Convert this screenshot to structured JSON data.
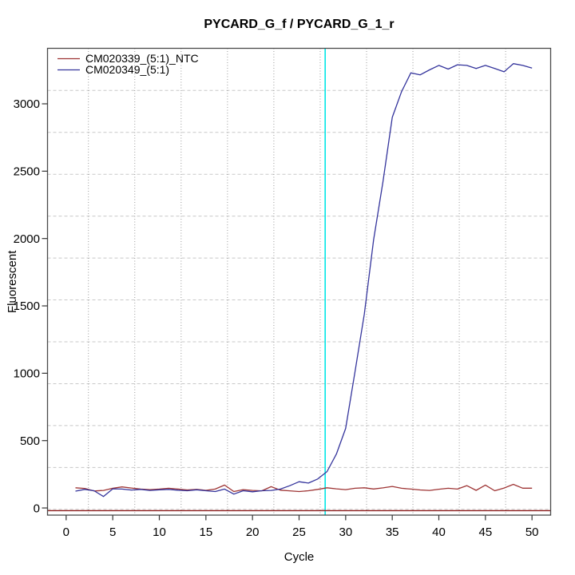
{
  "chart_data": {
    "type": "line",
    "title": "PYCARD_G_f / PYCARD_G_1_r",
    "xlabel": "Cycle",
    "ylabel": "Fluorescent",
    "x_ticks": [
      0,
      5,
      10,
      15,
      20,
      25,
      30,
      35,
      40,
      45,
      50
    ],
    "y_ticks": [
      0,
      500,
      1000,
      1500,
      2000,
      2500,
      3000
    ],
    "xlim": [
      -2,
      52
    ],
    "ylim": [
      -53,
      3412
    ],
    "grid": true,
    "legend_position": "top-left-inside",
    "x_start_cycle": 1,
    "series": [
      {
        "name": "CM020339_(5:1)_NTC",
        "color": "#9e3434",
        "values": [
          150,
          145,
          126,
          130,
          146,
          156,
          148,
          140,
          136,
          140,
          146,
          140,
          134,
          138,
          131,
          140,
          170,
          122,
          136,
          130,
          127,
          158,
          132,
          127,
          122,
          128,
          138,
          150,
          142,
          136,
          146,
          150,
          141,
          149,
          160,
          146,
          140,
          134,
          130,
          139,
          146,
          140,
          166,
          131,
          170,
          128,
          148,
          175,
          147,
          147
        ]
      },
      {
        "name": "CM020349_(5:1)",
        "color": "#34349c",
        "values": [
          125,
          138,
          128,
          85,
          142,
          140,
          133,
          138,
          130,
          135,
          138,
          132,
          128,
          135,
          128,
          122,
          140,
          103,
          128,
          120,
          128,
          130,
          140,
          165,
          195,
          185,
          215,
          270,
          400,
          590,
          1010,
          1440,
          1990,
          2420,
          2900,
          3090,
          3230,
          3215,
          3252,
          3285,
          3258,
          3290,
          3285,
          3262,
          3285,
          3262,
          3238,
          3298,
          3285,
          3265
        ]
      }
    ],
    "reference_lines": {
      "horizontal_baseline": {
        "value": -20,
        "color": "#8b1c1c"
      },
      "vertical_ct_line": {
        "cycle": 27.8,
        "color": "#00e6e6"
      }
    },
    "grid_colors": {
      "horizontal": "#c8c8c8",
      "vertical": "#9a9a9a"
    },
    "frame_color": "#4a4a4a"
  }
}
